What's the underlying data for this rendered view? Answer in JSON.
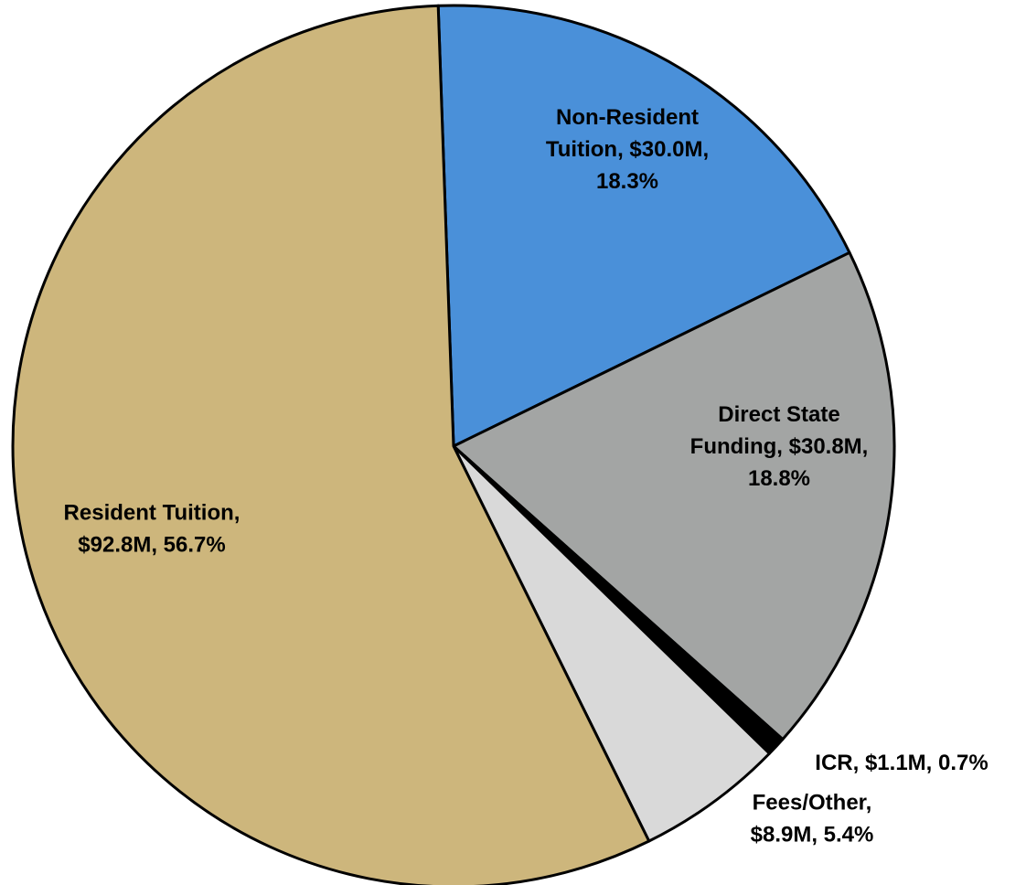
{
  "chart_data": {
    "type": "pie",
    "title": "",
    "slices": [
      {
        "label": "Non-Resident Tuition",
        "value": 30.0,
        "percent": 18.3,
        "display": "Non-Resident Tuition, $30.0M, 18.3%",
        "label_lines": [
          "Non-Resident",
          "Tuition, $30.0M,",
          "18.3%"
        ],
        "color": "#4a90d9"
      },
      {
        "label": "Direct State Funding",
        "value": 30.8,
        "percent": 18.8,
        "display": "Direct State Funding, $30.8M, 18.8%",
        "label_lines": [
          "Direct State",
          "Funding, $30.8M,",
          "18.8%"
        ],
        "color": "#a3a5a4"
      },
      {
        "label": "ICR",
        "value": 1.1,
        "percent": 0.7,
        "display": "ICR, $1.1M, 0.7%",
        "label_lines": [
          "ICR, $1.1M, 0.7%"
        ],
        "color": "#000000"
      },
      {
        "label": "Fees/Other",
        "value": 8.9,
        "percent": 5.4,
        "display": "Fees/Other, $8.9M, 5.4%",
        "label_lines": [
          "Fees/Other,",
          "$8.9M, 5.4%"
        ],
        "color": "#d9d9d9"
      },
      {
        "label": "Resident Tuition",
        "value": 92.8,
        "percent": 56.7,
        "display": "Resident Tuition, $92.8M, 56.7%",
        "label_lines": [
          "Resident Tuition,",
          "$92.8M, 56.7%"
        ],
        "color": "#cdb67c"
      }
    ],
    "unit": "$M",
    "legend": "none",
    "start_angle_deg": -2
  }
}
